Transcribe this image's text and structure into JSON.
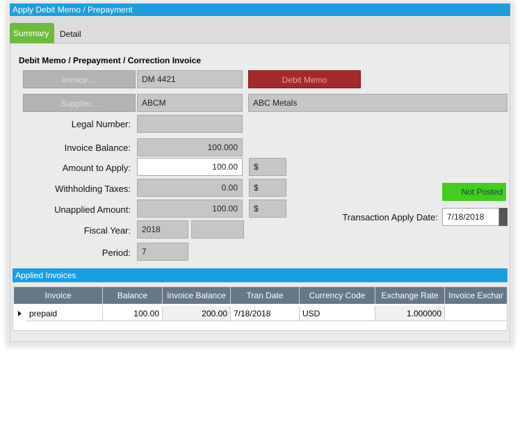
{
  "window": {
    "title": "Apply Debit Memo / Prepayment"
  },
  "tabs": [
    "Summary",
    "Detail"
  ],
  "section": {
    "title": "Debit Memo / Prepayment / Correction Invoice"
  },
  "invoice": {
    "button": "Invoice ...",
    "value": "DM 4421",
    "type": "Debit Memo"
  },
  "supplier": {
    "button": "Supplier...",
    "id": "ABCM",
    "name": "ABC Metals"
  },
  "fields": {
    "legal_number": {
      "label": "Legal Number:"
    },
    "invoice_balance": {
      "label": "Invoice Balance:",
      "value": "100.000"
    },
    "amount_to_apply": {
      "label": "Amount to Apply:",
      "value": "100.00",
      "currency": "$"
    },
    "withholding_taxes": {
      "label": "Withholding Taxes:",
      "value": "0.00",
      "currency": "$"
    },
    "unapplied_amount": {
      "label": "Unapplied Amount:",
      "value": "100.00",
      "currency": "$"
    },
    "fiscal_year": {
      "label": "Fiscal Year:",
      "value": "2018"
    },
    "period": {
      "label": "Period:",
      "value": "7"
    }
  },
  "status": "Not Posted",
  "apply_date": {
    "label": "Transaction Apply Date:",
    "value": "7/18/2018"
  },
  "grid": {
    "title": "Applied Invoices",
    "columns": [
      "Invoice",
      "Balance",
      "Invoice Balance",
      "Tran Date",
      "Currency Code",
      "Exchange Rate",
      "Invoice Exchar"
    ],
    "rows": [
      [
        "prepaid",
        "100.00",
        "200.00",
        "7/18/2018",
        "USD",
        "1.000000"
      ]
    ]
  }
}
